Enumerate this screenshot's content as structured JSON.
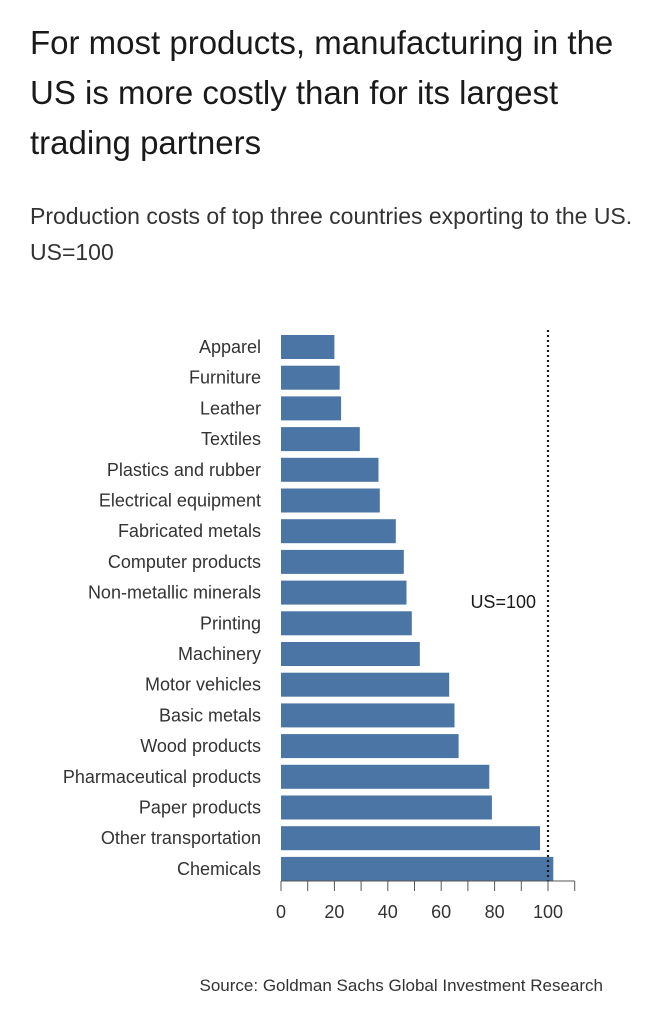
{
  "title": "For most products, manufacturing in the US is more costly than for its largest trading partners",
  "subtitle": "Production costs of top three countries exporting to the US. US=100",
  "source": "Source: Goldman Sachs Global Investment Research",
  "colors": {
    "bar": "#4a75a5",
    "reference_line": "#1a1a1a",
    "axis": "#555555"
  },
  "chart_data": {
    "type": "bar",
    "orientation": "horizontal",
    "categories": [
      "Apparel",
      "Furniture",
      "Leather",
      "Textiles",
      "Plastics and rubber",
      "Electrical equipment",
      "Fabricated metals",
      "Computer products",
      "Non-metallic minerals",
      "Printing",
      "Machinery",
      "Motor vehicles",
      "Basic metals",
      "Wood products",
      "Pharmaceutical products",
      "Paper products",
      "Other transportation",
      "Chemicals"
    ],
    "values": [
      20,
      22,
      22.5,
      29.5,
      36.5,
      37,
      43,
      46,
      47,
      49,
      52,
      63,
      65,
      66.5,
      78,
      79,
      97,
      102
    ],
    "xlim": [
      0,
      110
    ],
    "xticks": [
      0,
      20,
      40,
      60,
      80,
      100
    ],
    "xtick_labels": [
      "0",
      "20",
      "40",
      "60",
      "80",
      "100"
    ],
    "minor_xticks": [
      10,
      30,
      50,
      70,
      90,
      110
    ],
    "reference_line": {
      "value": 100,
      "label": "US=100",
      "style": "dotted"
    },
    "grid": false
  }
}
